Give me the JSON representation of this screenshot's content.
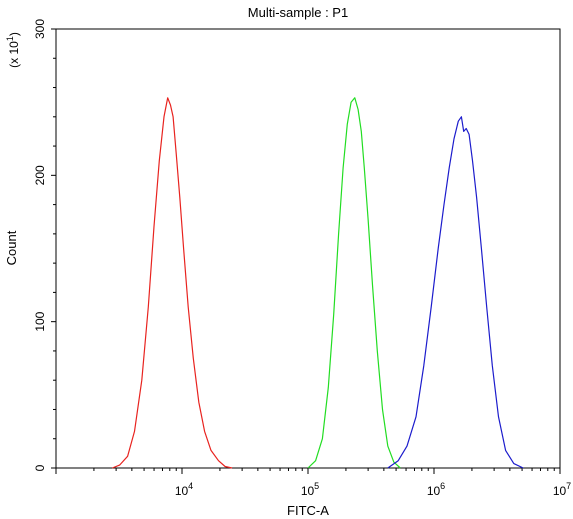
{
  "chart_data": {
    "type": "line",
    "title": "Multi-sample : P1",
    "xlabel": "FITC-A",
    "ylabel": "Count",
    "y_multiplier_label": "(x 10",
    "y_multiplier_exp": "1",
    "x_scale": "log",
    "xlim": [
      1000,
      10000000
    ],
    "ylim": [
      0,
      300
    ],
    "x_ticks": [
      {
        "value": 10000,
        "base": "10",
        "exp": "4"
      },
      {
        "value": 100000,
        "base": "10",
        "exp": "5"
      },
      {
        "value": 1000000,
        "base": "10",
        "exp": "6"
      },
      {
        "value": 10000000,
        "base": "10",
        "exp": "7"
      }
    ],
    "y_ticks": [
      {
        "value": 0,
        "label": "0"
      },
      {
        "value": 100,
        "label": "100"
      },
      {
        "value": 200,
        "label": "200"
      },
      {
        "value": 300,
        "label": "300"
      }
    ],
    "grid": false,
    "legend": "none",
    "series": [
      {
        "color": "#e8231f",
        "x": [
          2800,
          3200,
          3700,
          4200,
          4800,
          5400,
          6000,
          6600,
          7200,
          7700,
          8100,
          8500,
          9000,
          9600,
          10300,
          11200,
          12300,
          13600,
          15100,
          17000,
          19500,
          22000,
          25000
        ],
        "y": [
          0,
          2,
          8,
          25,
          60,
          110,
          165,
          210,
          240,
          253,
          248,
          240,
          215,
          185,
          150,
          110,
          75,
          45,
          25,
          12,
          5,
          1,
          0
        ]
      },
      {
        "color": "#22dd22",
        "x": [
          100000,
          115000,
          130000,
          145000,
          160000,
          175000,
          190000,
          205000,
          220000,
          235000,
          250000,
          265000,
          280000,
          300000,
          325000,
          355000,
          390000,
          430000,
          480000,
          540000
        ],
        "y": [
          0,
          5,
          20,
          55,
          105,
          160,
          205,
          235,
          250,
          253,
          245,
          230,
          205,
          170,
          125,
          80,
          40,
          15,
          4,
          0
        ]
      },
      {
        "color": "#1c1ccc",
        "x": [
          430000,
          520000,
          610000,
          720000,
          830000,
          950000,
          1080000,
          1200000,
          1320000,
          1440000,
          1560000,
          1650000,
          1720000,
          1800000,
          1900000,
          2020000,
          2180000,
          2380000,
          2620000,
          2900000,
          3250000,
          3700000,
          4300000,
          5100000
        ],
        "y": [
          0,
          5,
          15,
          35,
          70,
          110,
          150,
          180,
          205,
          225,
          237,
          240,
          230,
          232,
          228,
          210,
          185,
          150,
          110,
          70,
          35,
          12,
          3,
          0
        ]
      }
    ]
  }
}
